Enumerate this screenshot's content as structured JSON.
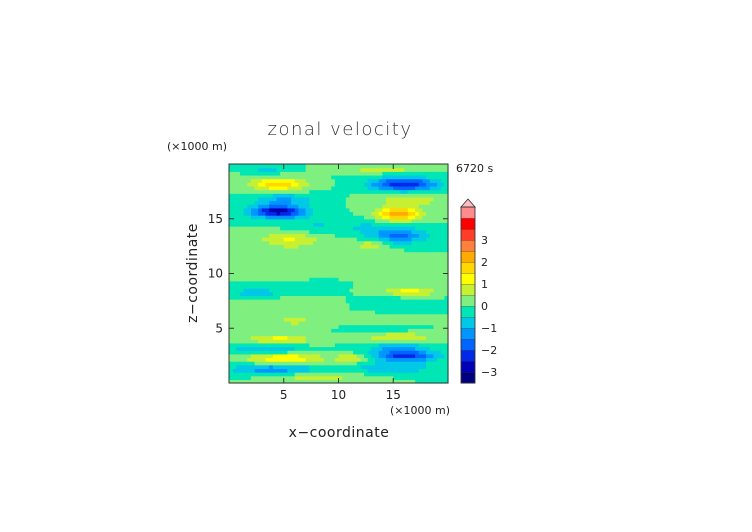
{
  "chart_data": {
    "type": "heatmap",
    "title": "zonal velocity",
    "time_label": "6720 s",
    "xlabel": "x−coordinate",
    "ylabel": "z−coordinate",
    "x_unit": "(×1000 m)",
    "y_unit": "(×1000 m)",
    "xlim": [
      0,
      20
    ],
    "ylim": [
      0,
      20
    ],
    "x_ticks": [
      5,
      10,
      15
    ],
    "y_ticks": [
      5,
      10,
      15
    ],
    "x_tick_labels": [
      "5",
      "10",
      "15"
    ],
    "y_tick_labels": [
      "5",
      "10",
      "15"
    ],
    "colorbar": {
      "min": -3.5,
      "max": 3.5,
      "step": 0.5,
      "tick_values": [
        3,
        2,
        1,
        0,
        -1,
        -2,
        -3
      ],
      "tick_labels": [
        "3",
        "2",
        "1",
        "0",
        "−1",
        "−2",
        "−3"
      ],
      "colors": [
        "#000080",
        "#0000b4",
        "#0028e6",
        "#0064ff",
        "#0096ff",
        "#00c8e6",
        "#00e6b4",
        "#7ff07f",
        "#c8f032",
        "#ffff00",
        "#ffd800",
        "#ffaa00",
        "#ff7f3c",
        "#ff3c28",
        "#ff0000",
        "#ff8c8c",
        "#ffbebe"
      ]
    },
    "features": [
      {
        "x": 4.5,
        "z": 18.2,
        "sx": 2.4,
        "sz": 0.5,
        "value": 2.0
      },
      {
        "x": 16.0,
        "z": 18.2,
        "sx": 3.0,
        "sz": 0.6,
        "value": -2.5
      },
      {
        "x": 5.0,
        "z": 16.8,
        "sx": 2.8,
        "sz": 0.5,
        "value": -1.0
      },
      {
        "x": 16.5,
        "z": 16.8,
        "sx": 2.8,
        "sz": 0.5,
        "value": 1.0
      },
      {
        "x": 4.5,
        "z": 15.7,
        "sx": 2.5,
        "sz": 0.6,
        "value": -2.8
      },
      {
        "x": 15.5,
        "z": 15.5,
        "sx": 2.0,
        "sz": 0.6,
        "value": 2.5
      },
      {
        "x": 8.0,
        "z": 14.5,
        "sx": 2.4,
        "sz": 0.7,
        "value": -0.5
      },
      {
        "x": 12.5,
        "z": 14.3,
        "sx": 2.4,
        "sz": 0.7,
        "value": -0.5
      },
      {
        "x": 5.5,
        "z": 13.2,
        "sx": 2.8,
        "sz": 0.6,
        "value": 1.0
      },
      {
        "x": 15.5,
        "z": 13.5,
        "sx": 2.6,
        "sz": 0.7,
        "value": -1.6
      },
      {
        "x": 13.0,
        "z": 12.7,
        "sx": 1.6,
        "sz": 0.5,
        "value": 0.8
      },
      {
        "x": 6.0,
        "z": 12.3,
        "sx": 3.5,
        "sz": 0.6,
        "value": 0.3
      },
      {
        "x": 13.5,
        "z": 11.4,
        "sx": 3.0,
        "sz": 0.6,
        "value": 0.3
      },
      {
        "x": 3.5,
        "z": 10.5,
        "sx": 3.0,
        "sz": 0.5,
        "value": 0.3
      },
      {
        "x": 16.5,
        "z": 10.5,
        "sx": 3.0,
        "sz": 0.5,
        "value": 0.3
      },
      {
        "x": 2.5,
        "z": 8.3,
        "sx": 1.8,
        "sz": 0.5,
        "value": -1.0
      },
      {
        "x": 7.5,
        "z": 8.5,
        "sx": 1.6,
        "sz": 0.4,
        "value": -0.5
      },
      {
        "x": 16.5,
        "z": 8.4,
        "sx": 2.2,
        "sz": 0.4,
        "value": 1.3
      },
      {
        "x": 5.5,
        "z": 7.2,
        "sx": 3.5,
        "sz": 0.5,
        "value": 0.5
      },
      {
        "x": 15.5,
        "z": 7.3,
        "sx": 3.0,
        "sz": 0.5,
        "value": -0.5
      },
      {
        "x": 6.0,
        "z": 5.7,
        "sx": 2.8,
        "sz": 0.5,
        "value": 0.6
      },
      {
        "x": 14.0,
        "z": 5.7,
        "sx": 3.0,
        "sz": 0.5,
        "value": 0.3
      },
      {
        "x": 14.0,
        "z": 5.0,
        "sx": 2.5,
        "sz": 0.4,
        "value": -0.6
      },
      {
        "x": 4.5,
        "z": 4.0,
        "sx": 3.0,
        "sz": 0.5,
        "value": 1.2
      },
      {
        "x": 15.5,
        "z": 4.2,
        "sx": 3.0,
        "sz": 0.5,
        "value": 1.0
      },
      {
        "x": 3.5,
        "z": 3.2,
        "sx": 3.2,
        "sz": 0.5,
        "value": -1.1
      },
      {
        "x": 15.5,
        "z": 3.3,
        "sx": 2.6,
        "sz": 0.5,
        "value": -1.1
      },
      {
        "x": 5.0,
        "z": 2.3,
        "sx": 3.5,
        "sz": 0.5,
        "value": 1.5
      },
      {
        "x": 16.0,
        "z": 2.5,
        "sx": 3.0,
        "sz": 0.5,
        "value": -2.2
      },
      {
        "x": 11.5,
        "z": 2.3,
        "sx": 1.8,
        "sz": 0.4,
        "value": 1.0
      },
      {
        "x": 4.0,
        "z": 1.3,
        "sx": 4.0,
        "sz": 0.5,
        "value": -1.3
      },
      {
        "x": 15.0,
        "z": 1.4,
        "sx": 3.5,
        "sz": 0.5,
        "value": -1.0
      },
      {
        "x": 8.0,
        "z": 0.6,
        "sx": 4.0,
        "sz": 0.4,
        "value": 0.8
      },
      {
        "x": 3.5,
        "z": 19.6,
        "sx": 1.5,
        "sz": 0.3,
        "value": -0.8
      },
      {
        "x": 14.0,
        "z": 19.6,
        "sx": 3.0,
        "sz": 0.3,
        "value": 0.9
      }
    ]
  }
}
